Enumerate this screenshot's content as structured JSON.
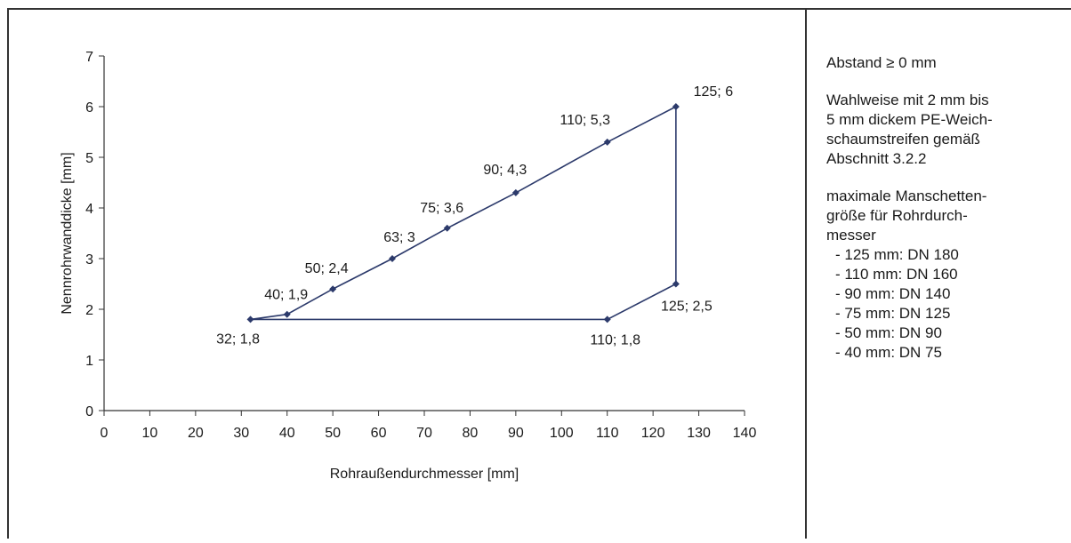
{
  "chart_data": {
    "type": "line",
    "xlabel": "Rohraußendurchmesser [mm]",
    "ylabel": "Nennrohrwanddicke [mm]",
    "xlim": [
      0,
      140
    ],
    "ylim": [
      0,
      7
    ],
    "x_ticks": [
      "0",
      "10",
      "20",
      "30",
      "40",
      "50",
      "60",
      "70",
      "80",
      "90",
      "100",
      "110",
      "120",
      "130",
      "140"
    ],
    "y_ticks": [
      "0",
      "1",
      "2",
      "3",
      "4",
      "5",
      "6",
      "7"
    ],
    "grid": false,
    "line_color": "#2c3a6b",
    "series": [
      {
        "points": [
          {
            "x": 32,
            "y": 1.8,
            "label": "32; 1,8"
          },
          {
            "x": 40,
            "y": 1.9,
            "label": "40; 1,9"
          },
          {
            "x": 50,
            "y": 2.4,
            "label": "50; 2,4"
          },
          {
            "x": 63,
            "y": 3.0,
            "label": "63; 3"
          },
          {
            "x": 75,
            "y": 3.6,
            "label": "75; 3,6"
          },
          {
            "x": 90,
            "y": 4.3,
            "label": "90; 4,3"
          },
          {
            "x": 110,
            "y": 5.3,
            "label": "110; 5,3"
          },
          {
            "x": 125,
            "y": 6.0,
            "label": "125; 6"
          },
          {
            "x": 125,
            "y": 2.5,
            "label": "125; 2,5"
          },
          {
            "x": 110,
            "y": 1.8,
            "label": "110; 1,8"
          },
          {
            "x": 32,
            "y": 1.8,
            "label": ""
          }
        ]
      }
    ]
  },
  "notes": {
    "distance": "Abstand ≥ 0 mm",
    "optional": [
      "Wahlweise mit 2 mm bis",
      "5 mm dickem PE-Weich-",
      "schaumstreifen gemäß",
      "Abschnitt 3.2.2"
    ],
    "max_heading": [
      "maximale Manschetten-",
      "größe für Rohrdurch-",
      "messer"
    ],
    "sizes": [
      "- 125 mm: DN 180",
      "- 110 mm: DN 160",
      "- 90 mm: DN 140",
      "- 75 mm: DN 125",
      "- 50 mm: DN 90",
      "- 40 mm: DN 75"
    ]
  }
}
